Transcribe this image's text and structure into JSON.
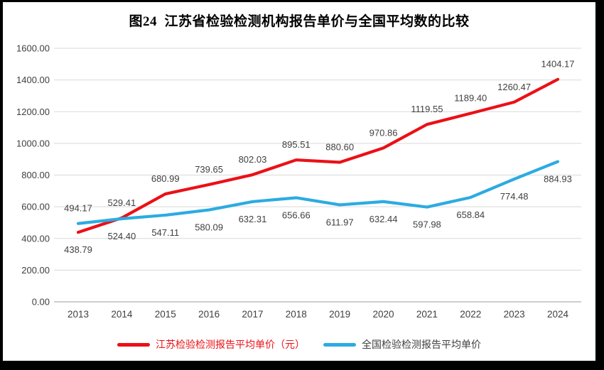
{
  "frame": {
    "background_color": "#000000",
    "page_color": "#ffffff"
  },
  "chart_data": {
    "type": "line",
    "title": "图24  江苏省检验检测机构报告单价与全国平均数的比较",
    "categories": [
      "2013",
      "2014",
      "2015",
      "2016",
      "2017",
      "2018",
      "2019",
      "2020",
      "2021",
      "2022",
      "2023",
      "2024"
    ],
    "series": [
      {
        "name": "江苏检验检测报告平均单价（元）",
        "color": "#eb1016",
        "label_side": "above",
        "first_label_side": "below",
        "values": [
          438.79,
          529.41,
          680.99,
          739.65,
          802.03,
          895.51,
          880.6,
          970.86,
          1119.55,
          1189.4,
          1260.47,
          1404.17
        ]
      },
      {
        "name": "全国检验检测报告平均单价",
        "color": "#2cabe1",
        "label_side": "below",
        "first_label_side": "above",
        "values": [
          494.17,
          524.4,
          547.11,
          580.09,
          632.31,
          656.66,
          611.97,
          632.44,
          597.98,
          658.84,
          774.48,
          884.93
        ]
      }
    ],
    "ylim": [
      0,
      1600
    ],
    "ytick_step": 200,
    "ytick_labels": [
      "0.00",
      "200.00",
      "400.00",
      "600.00",
      "800.00",
      "1000.00",
      "1200.00",
      "1400.00",
      "1600.00"
    ],
    "value_decimals": 2,
    "grid": true,
    "gridline_color": "#d9d9d9",
    "axis_line_color": "#9d9d9d",
    "tick_label_color": "#404040",
    "data_label_color": "#404040",
    "legend_position": "bottom",
    "legend": [
      {
        "label": "江苏检验检测报告平均单价（元）",
        "marker_color": "#eb1016",
        "text_color": "#eb1016"
      },
      {
        "label": "全国检验检测报告平均单价",
        "marker_color": "#2cabe1",
        "text_color": "#404040"
      }
    ]
  }
}
